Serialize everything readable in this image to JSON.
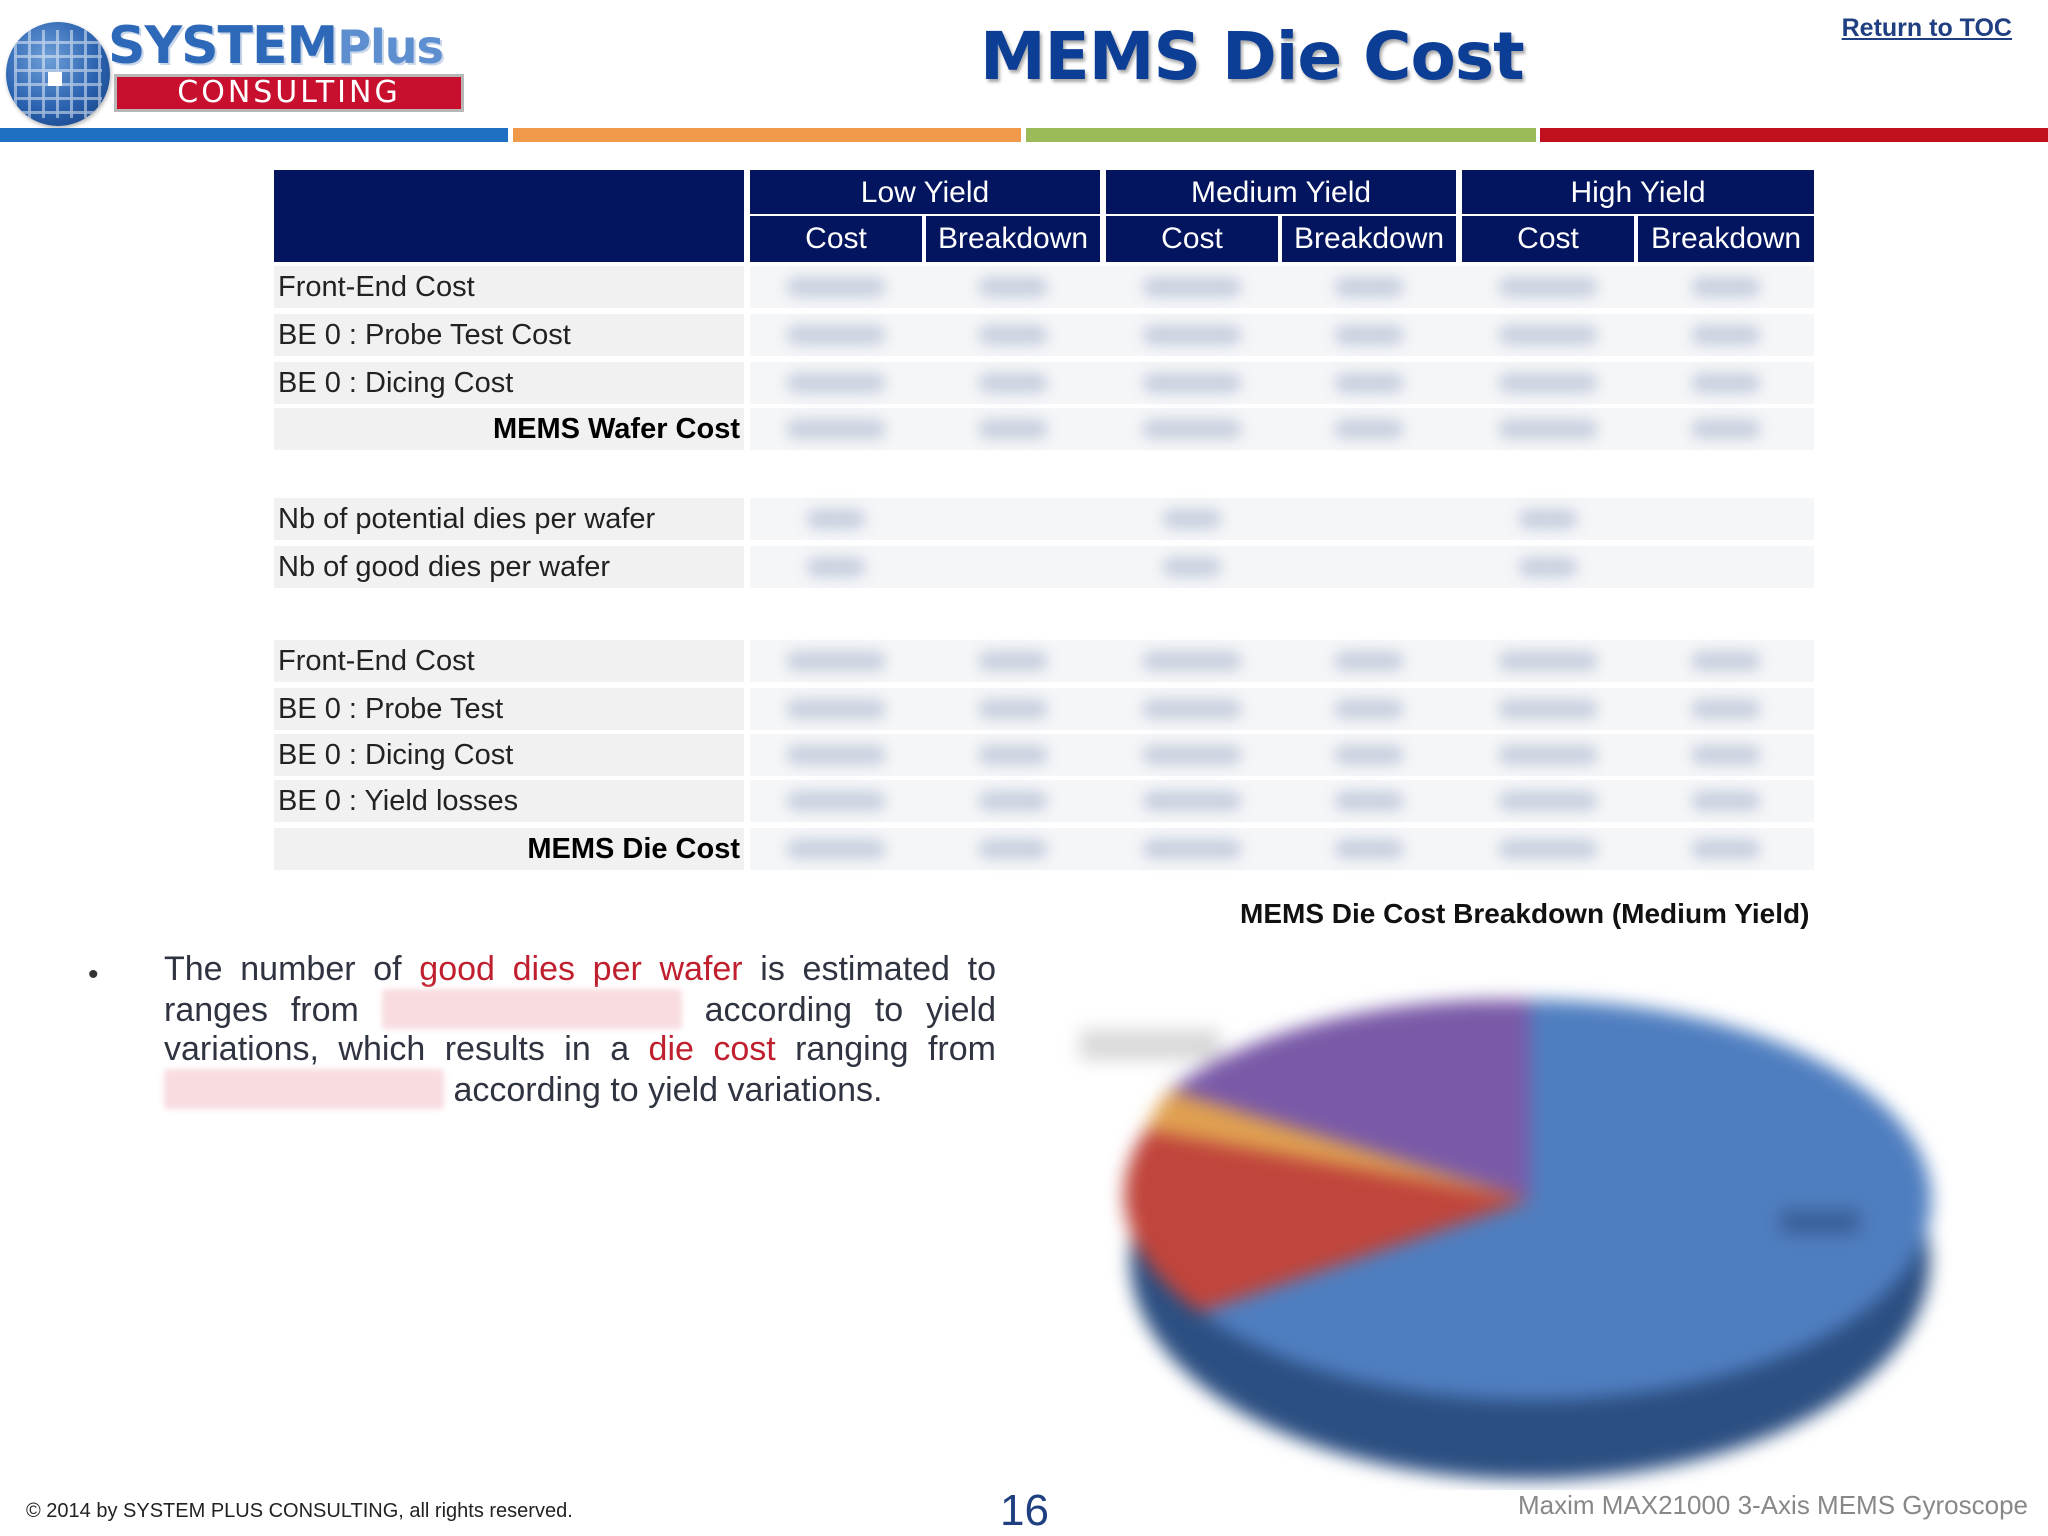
{
  "header": {
    "logo_word1": "SYSTEM",
    "logo_word1_suffix": "Plus",
    "logo_word2": "CONSULTING",
    "title": "MEMS Die Cost",
    "toc_link": "Return to TOC",
    "bar_colors": [
      "#1f6fc2",
      "#f0994a",
      "#9bbb59",
      "#c0101e"
    ]
  },
  "table": {
    "yield_groups": [
      "Low Yield",
      "Medium Yield",
      "High Yield"
    ],
    "sub_headers": [
      "Cost",
      "Breakdown",
      "Cost",
      "Breakdown",
      "Cost",
      "Breakdown"
    ],
    "section1": [
      "Front-End Cost",
      "BE 0 : Probe Test Cost",
      "BE 0 : Dicing Cost"
    ],
    "section1_total": "MEMS Wafer Cost",
    "section2": [
      "Nb of potential dies per wafer",
      "Nb of good dies per wafer"
    ],
    "section3": [
      "Front-End Cost",
      "BE 0 : Probe Test",
      "BE 0 : Dicing Cost",
      "BE 0 : Yield losses"
    ],
    "section3_total": "MEMS Die Cost"
  },
  "bullet": {
    "part1": "The number of ",
    "highlight1": "good dies per wafer",
    "part2": " is estimated to ranges from ",
    "part3": " according to yield variations, which results in a ",
    "highlight2": "die cost",
    "part4": " ranging from ",
    "part5": " according to yield variations."
  },
  "chart": {
    "title": "MEMS Die Cost Breakdown (Medium Yield)"
  },
  "footer": {
    "copyright": "© 2014 by SYSTEM PLUS CONSULTING, all rights reserved.",
    "page_number": "16",
    "product": "Maxim MAX21000 3-Axis MEMS Gyroscope"
  }
}
